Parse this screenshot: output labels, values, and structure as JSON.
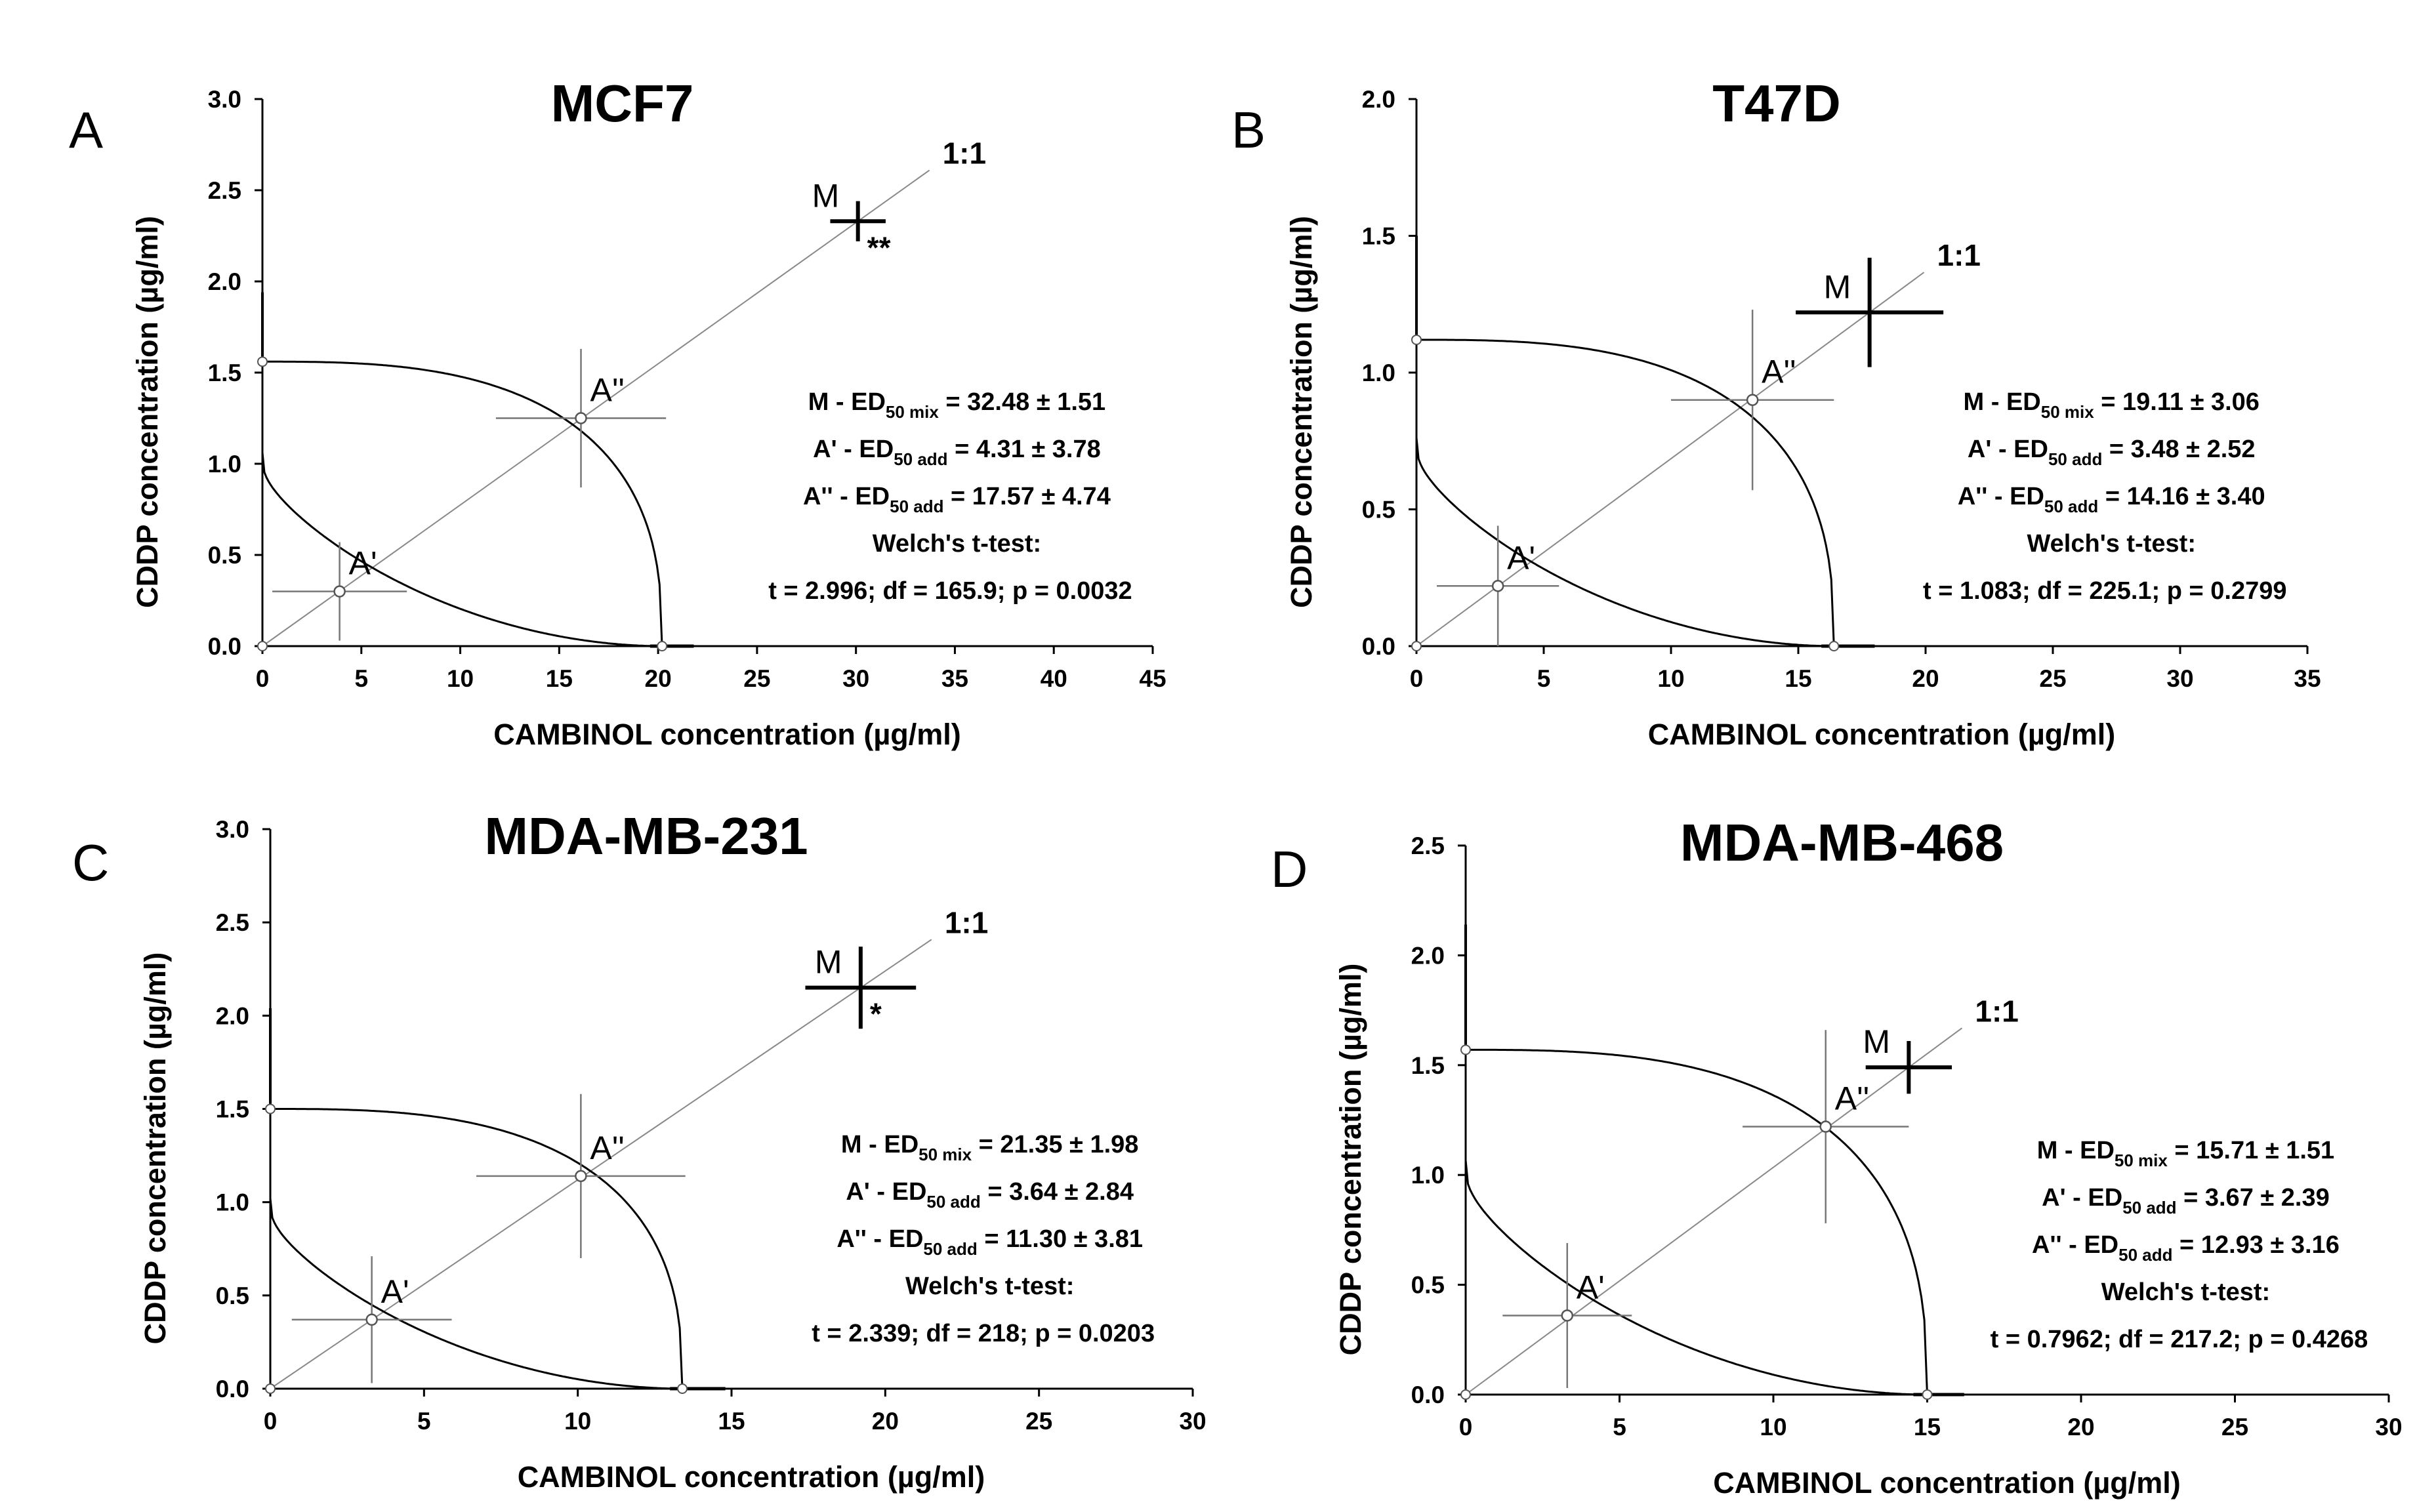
{
  "chart_data": [
    {
      "panel": "A",
      "type": "isobologram",
      "title": "MCF7",
      "xlabel": "CAMBINOL concentration (µg/ml)",
      "ylabel": "CDDP concentration (µg/ml)",
      "xlim": [
        0,
        45
      ],
      "ylim": [
        0,
        3
      ],
      "xticks": [
        0,
        5,
        10,
        15,
        20,
        25,
        30,
        35,
        40,
        45
      ],
      "yticks": [
        0,
        0.5,
        1.0,
        1.5,
        2.0,
        2.5,
        3.0
      ],
      "yticklabels": [
        "0.0",
        "0.5",
        "1.0",
        "1.5",
        "2.0",
        "2.5",
        "3.0"
      ],
      "line_label": "1:1",
      "y_intercept": 1.56,
      "x_intercept": 20.2,
      "lower_whisker_x": 21.8,
      "upper_whisker_y": 1.94,
      "points": [
        {
          "name": "A'",
          "x": 3.9,
          "y": 0.3,
          "xerr": 3.4,
          "yerr": 0.27
        },
        {
          "name": "A''",
          "x": 16.1,
          "y": 1.25,
          "xerr": 4.3,
          "yerr": 0.38
        },
        {
          "name": "M",
          "x": 30.1,
          "y": 2.33,
          "xerr": 1.4,
          "yerr": 0.11,
          "marker": "**"
        }
      ],
      "stats": {
        "mix": {
          "prefix": "M - ED",
          "sub": "50 mix",
          "value": " = 32.48 ± 1.51"
        },
        "add1": {
          "prefix": "A' - ED",
          "sub": "50 add",
          "value": " = 4.31 ± 3.78"
        },
        "add2": {
          "prefix": "A'' - ED",
          "sub": "50 add",
          "value": " = 17.57 ± 4.74"
        },
        "test": "Welch's t-test:",
        "result": "t = 2.996; df = 165.9; p = 0.0032"
      }
    },
    {
      "panel": "B",
      "type": "isobologram",
      "title": "T47D",
      "xlabel": "CAMBINOL concentration (µg/ml)",
      "ylabel": "CDDP concentration (µg/ml)",
      "xlim": [
        0,
        35
      ],
      "ylim": [
        0,
        2
      ],
      "xticks": [
        0,
        5,
        10,
        15,
        20,
        25,
        30,
        35
      ],
      "yticks": [
        0,
        0.5,
        1.0,
        1.5,
        2.0
      ],
      "yticklabels": [
        "0.0",
        "0.5",
        "1.0",
        "1.5",
        "2.0"
      ],
      "line_label": "1:1",
      "y_intercept": 1.12,
      "x_intercept": 16.4,
      "lower_whisker_x": 18.0,
      "upper_whisker_y": 1.5,
      "points": [
        {
          "name": "A'",
          "x": 3.2,
          "y": 0.22,
          "xerr": 2.4,
          "yerr": 0.22
        },
        {
          "name": "A''",
          "x": 13.2,
          "y": 0.9,
          "xerr": 3.2,
          "yerr": 0.33
        },
        {
          "name": "M",
          "x": 17.8,
          "y": 1.22,
          "xerr": 2.9,
          "yerr": 0.2,
          "marker": ""
        }
      ],
      "stats": {
        "mix": {
          "prefix": "M - ED",
          "sub": "50 mix",
          "value": " = 19.11 ± 3.06"
        },
        "add1": {
          "prefix": "A' - ED",
          "sub": "50 add",
          "value": " = 3.48 ± 2.52"
        },
        "add2": {
          "prefix": "A'' - ED",
          "sub": "50 add",
          "value": " = 14.16 ± 3.40"
        },
        "test": "Welch's t-test:",
        "result": "t = 1.083; df = 225.1; p = 0.2799"
      }
    },
    {
      "panel": "C",
      "type": "isobologram",
      "title": "MDA-MB-231",
      "xlabel": "CAMBINOL concentration (µg/ml)",
      "ylabel": "CDDP concentration (µg/ml)",
      "xlim": [
        0,
        30
      ],
      "ylim": [
        0,
        3
      ],
      "xticks": [
        0,
        5,
        10,
        15,
        20,
        25,
        30
      ],
      "yticks": [
        0,
        0.5,
        1.0,
        1.5,
        2.0,
        2.5,
        3.0
      ],
      "yticklabels": [
        "0.0",
        "0.5",
        "1.0",
        "1.5",
        "2.0",
        "2.5",
        "3.0"
      ],
      "line_label": "1:1",
      "y_intercept": 1.5,
      "x_intercept": 13.4,
      "lower_whisker_x": 14.8,
      "upper_whisker_y": 2.04,
      "points": [
        {
          "name": "A'",
          "x": 3.3,
          "y": 0.37,
          "xerr": 2.6,
          "yerr": 0.34
        },
        {
          "name": "A''",
          "x": 10.1,
          "y": 1.14,
          "xerr": 3.4,
          "yerr": 0.44
        },
        {
          "name": "M",
          "x": 19.2,
          "y": 2.15,
          "xerr": 1.8,
          "yerr": 0.22,
          "marker": "*"
        }
      ],
      "stats": {
        "mix": {
          "prefix": "M - ED",
          "sub": "50 mix",
          "value": " = 21.35 ± 1.98"
        },
        "add1": {
          "prefix": "A' - ED",
          "sub": "50 add",
          "value": " = 3.64 ± 2.84"
        },
        "add2": {
          "prefix": "A'' - ED",
          "sub": "50 add",
          "value": " = 11.30 ± 3.81"
        },
        "test": "Welch's t-test:",
        "result": "t = 2.339; df = 218; p = 0.0203"
      }
    },
    {
      "panel": "D",
      "type": "isobologram",
      "title": "MDA-MB-468",
      "xlabel": "CAMBINOL concentration (µg/ml)",
      "ylabel": "CDDP concentration (µg/ml)",
      "xlim": [
        0,
        30
      ],
      "ylim": [
        0,
        2.5
      ],
      "xticks": [
        0,
        5,
        10,
        15,
        20,
        25,
        30
      ],
      "yticks": [
        0,
        0.5,
        1.0,
        1.5,
        2.0,
        2.5
      ],
      "yticklabels": [
        "0.0",
        "0.5",
        "1.0",
        "1.5",
        "2.0",
        "2.5"
      ],
      "line_label": "1:1",
      "y_intercept": 1.57,
      "x_intercept": 15.0,
      "lower_whisker_x": 16.2,
      "upper_whisker_y": 2.14,
      "points": [
        {
          "name": "A'",
          "x": 3.3,
          "y": 0.36,
          "xerr": 2.1,
          "yerr": 0.33
        },
        {
          "name": "A''",
          "x": 11.7,
          "y": 1.22,
          "xerr": 2.7,
          "yerr": 0.44
        },
        {
          "name": "M",
          "x": 14.4,
          "y": 1.49,
          "xerr": 1.4,
          "yerr": 0.12,
          "marker": ""
        }
      ],
      "stats": {
        "mix": {
          "prefix": "M - ED",
          "sub": "50 mix",
          "value": " = 15.71 ± 1.51"
        },
        "add1": {
          "prefix": "A' - ED",
          "sub": "50 add",
          "value": " = 3.67 ± 2.39"
        },
        "add2": {
          "prefix": "A'' - ED",
          "sub": "50 add",
          "value": " = 12.93 ± 3.16"
        },
        "test": "Welch's t-test:",
        "result": "t = 0.7962; df = 217.2; p = 0.4268"
      }
    }
  ]
}
